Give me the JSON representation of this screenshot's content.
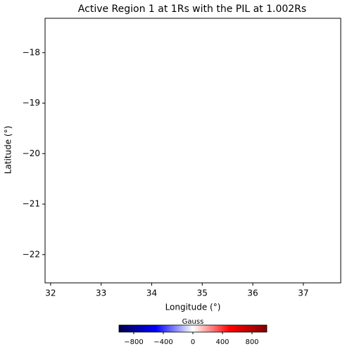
{
  "chart_data": {
    "type": "image",
    "title": "Active Region 1 at 1Rs with the PIL at 1.002Rs",
    "xlabel": "Longitude (°)",
    "ylabel": "Latitude (°)",
    "xlim": [
      31.89,
      37.74
    ],
    "xticks": [
      32,
      33,
      34,
      35,
      36,
      37
    ],
    "ylim": [
      -22.56,
      -17.32
    ],
    "yticks": [
      {
        "value": -18,
        "label": "−18"
      },
      {
        "value": -19,
        "label": "−19"
      },
      {
        "value": -20,
        "label": "−20"
      },
      {
        "value": -21,
        "label": "−21"
      },
      {
        "value": -22,
        "label": "−22"
      }
    ],
    "colorbar": {
      "label": "Gauss",
      "lim": [
        -1000,
        1000
      ],
      "ticks": [
        {
          "value": -800,
          "label": "−800"
        },
        {
          "value": -400,
          "label": "−400"
        },
        0,
        400,
        800
      ],
      "colors": [
        "#00004c",
        "#0000ff",
        "#ffffff",
        "#ff0000",
        "#7f0000"
      ]
    }
  }
}
